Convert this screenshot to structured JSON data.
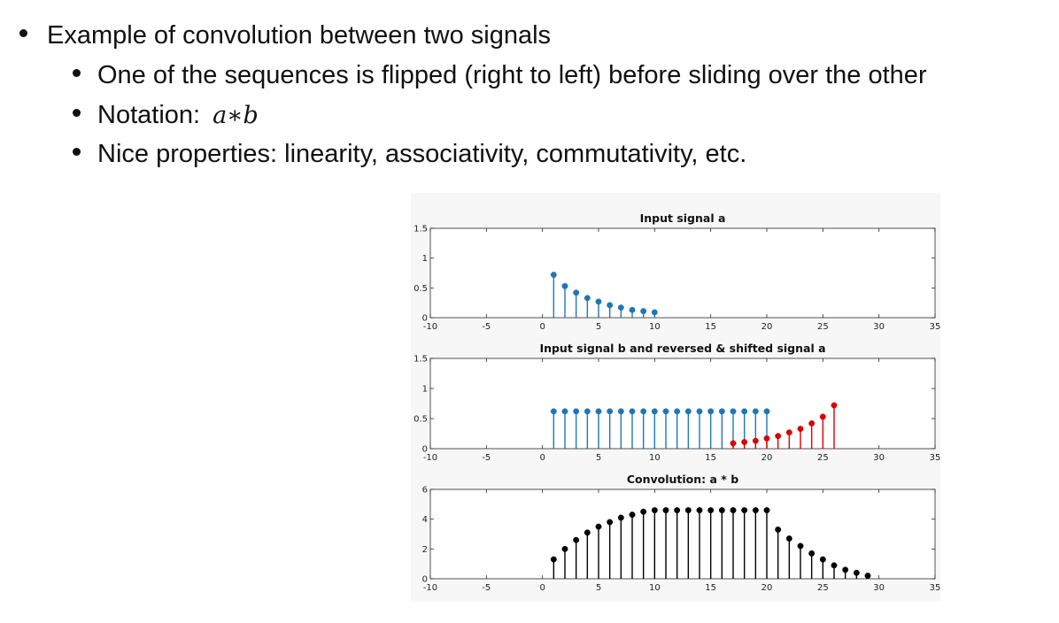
{
  "slide": {
    "bullet_main": "Example of convolution between two signals",
    "sub_bullets": [
      {
        "text": "One of the sequences is flipped (right to left) before sliding over the other"
      },
      {
        "text": "Notation:",
        "math": "a∗b"
      },
      {
        "text": "Nice properties: linearity, associativity, commutativity, etc."
      }
    ]
  },
  "chart_data": [
    {
      "type": "stem",
      "title": "Input signal a",
      "xlim": [
        -10,
        35
      ],
      "ylim": [
        0,
        1.5
      ],
      "xticks": [
        "-10",
        "-5",
        "0",
        "5",
        "10",
        "15",
        "20",
        "25",
        "30",
        "35"
      ],
      "yticks": [
        "0",
        "0.5",
        "1",
        "1.5"
      ],
      "series": [
        {
          "color": "#1f77b4",
          "x": [
            1,
            2,
            3,
            4,
            5,
            6,
            7,
            8,
            9,
            10
          ],
          "y": [
            0.72,
            0.53,
            0.42,
            0.33,
            0.27,
            0.21,
            0.17,
            0.13,
            0.11,
            0.09
          ]
        }
      ]
    },
    {
      "type": "stem",
      "title": "Input signal b and reversed & shifted signal a",
      "xlim": [
        -10,
        35
      ],
      "ylim": [
        0,
        1.5
      ],
      "xticks": [
        "-10",
        "-5",
        "0",
        "5",
        "10",
        "15",
        "20",
        "25",
        "30",
        "35"
      ],
      "yticks": [
        "0",
        "0.5",
        "1",
        "1.5"
      ],
      "series": [
        {
          "color": "#1f77b4",
          "x": [
            1,
            2,
            3,
            4,
            5,
            6,
            7,
            8,
            9,
            10,
            11,
            12,
            13,
            14,
            15,
            16,
            17,
            18,
            19,
            20
          ],
          "y": [
            0.62,
            0.62,
            0.62,
            0.62,
            0.62,
            0.62,
            0.62,
            0.62,
            0.62,
            0.62,
            0.62,
            0.62,
            0.62,
            0.62,
            0.62,
            0.62,
            0.62,
            0.62,
            0.62,
            0.62
          ]
        },
        {
          "color": "#dd0000",
          "x": [
            17,
            18,
            19,
            20,
            21,
            22,
            23,
            24,
            25,
            26
          ],
          "y": [
            0.09,
            0.11,
            0.13,
            0.17,
            0.21,
            0.27,
            0.33,
            0.42,
            0.53,
            0.72
          ]
        }
      ]
    },
    {
      "type": "stem",
      "title": "Convolution: a * b",
      "xlim": [
        -10,
        35
      ],
      "ylim": [
        0,
        6
      ],
      "xticks": [
        "-10",
        "-5",
        "0",
        "5",
        "10",
        "15",
        "20",
        "25",
        "30",
        "35"
      ],
      "yticks": [
        "0",
        "2",
        "4",
        "6"
      ],
      "series": [
        {
          "color": "#000000",
          "x": [
            1,
            2,
            3,
            4,
            5,
            6,
            7,
            8,
            9,
            10,
            11,
            12,
            13,
            14,
            15,
            16,
            17,
            18,
            19,
            20,
            21,
            22,
            23,
            24,
            25,
            26,
            27,
            28,
            29
          ],
          "y": [
            1.3,
            2.0,
            2.6,
            3.1,
            3.5,
            3.8,
            4.1,
            4.3,
            4.5,
            4.6,
            4.6,
            4.6,
            4.6,
            4.6,
            4.6,
            4.6,
            4.6,
            4.6,
            4.6,
            4.6,
            3.3,
            2.7,
            2.2,
            1.7,
            1.3,
            0.9,
            0.6,
            0.4,
            0.2
          ]
        }
      ]
    }
  ]
}
